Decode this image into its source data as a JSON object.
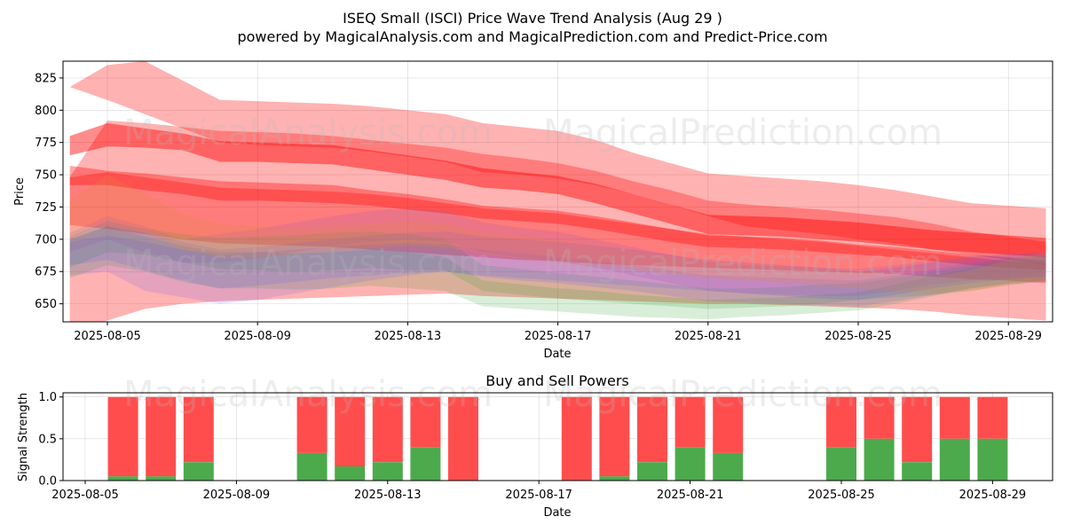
{
  "title": "ISEQ Small (ISCI) Price Wave Trend Analysis (Aug 29 )",
  "subtitle": "powered by MagicalAnalysis.com and MagicalPrediction.com and Predict-Price.com",
  "watermarks": [
    "MagicalAnalysis.com",
    "MagicalPrediction.com"
  ],
  "colors": {
    "red": "#ff0000",
    "green": "#2ca02c",
    "blue": "#4a4aff",
    "purple": "#9b59b6",
    "orange": "#e08a3c",
    "buy": "#4caa4c",
    "sell": "#ff4d4d"
  },
  "chart_data": [
    {
      "type": "area",
      "xlabel": "Date",
      "ylabel": "Price",
      "ylim": [
        636,
        838
      ],
      "grid": true,
      "x_ticks": [
        "2025-08-05",
        "2025-08-09",
        "2025-08-13",
        "2025-08-17",
        "2025-08-21",
        "2025-08-25",
        "2025-08-29"
      ],
      "y_ticks": [
        650,
        675,
        700,
        725,
        750,
        775,
        800,
        825
      ],
      "dates": [
        "2025-08-04",
        "2025-08-05",
        "2025-08-06",
        "2025-08-07",
        "2025-08-08",
        "2025-08-09",
        "2025-08-10",
        "2025-08-11",
        "2025-08-12",
        "2025-08-13",
        "2025-08-14",
        "2025-08-15",
        "2025-08-16",
        "2025-08-17",
        "2025-08-18",
        "2025-08-19",
        "2025-08-20",
        "2025-08-21",
        "2025-08-22",
        "2025-08-23",
        "2025-08-24",
        "2025-08-25",
        "2025-08-26",
        "2025-08-27",
        "2025-08-28",
        "2025-08-29",
        "2025-08-30"
      ],
      "bands": [
        {
          "color": "red",
          "opacity": 0.3,
          "lower": [
            818,
            808,
            797,
            786,
            775,
            773,
            772,
            771,
            768,
            764,
            760,
            752,
            750,
            747,
            742,
            735,
            727,
            718,
            710,
            707,
            704,
            700,
            697,
            692,
            688,
            684,
            680
          ],
          "upper": [
            818,
            835,
            838,
            823,
            808,
            807,
            806,
            805,
            803,
            800,
            797,
            790,
            787,
            784,
            777,
            767,
            759,
            751,
            749,
            747,
            745,
            742,
            738,
            733,
            728,
            726,
            724
          ]
        },
        {
          "color": "red",
          "opacity": 0.3,
          "lower": [
            711,
            708,
            704,
            700,
            697,
            696,
            695,
            694,
            692,
            690,
            688,
            686,
            684,
            683,
            681,
            680,
            679,
            678,
            677,
            676,
            675,
            674,
            673,
            671,
            669,
            668,
            666
          ],
          "upper": [
            748,
            792,
            790,
            787,
            784,
            783,
            782,
            780,
            777,
            774,
            771,
            766,
            763,
            759,
            753,
            745,
            738,
            730,
            727,
            725,
            723,
            720,
            717,
            712,
            706,
            702,
            698
          ]
        },
        {
          "color": "red",
          "opacity": 0.3,
          "lower": [
            625,
            637,
            646,
            650,
            652,
            653,
            654,
            655,
            656,
            657,
            658,
            656,
            655,
            654,
            653,
            652,
            651,
            650,
            650,
            649,
            648,
            647,
            646,
            644,
            641,
            639,
            637
          ],
          "upper": [
            748,
            752,
            748,
            744,
            740,
            739,
            738,
            737,
            735,
            732,
            728,
            724,
            722,
            720,
            716,
            712,
            708,
            704,
            702,
            700,
            698,
            695,
            692,
            689,
            686,
            683,
            681
          ]
        },
        {
          "color": "red",
          "opacity": 0.35,
          "lower": [
            742,
            742,
            738,
            735,
            730,
            730,
            729,
            728,
            726,
            723,
            720,
            716,
            714,
            712,
            708,
            703,
            698,
            694,
            693,
            692,
            690,
            688,
            686,
            683,
            680,
            678,
            676
          ],
          "upper": [
            757,
            753,
            751,
            748,
            745,
            744,
            743,
            742,
            738,
            735,
            731,
            726,
            724,
            722,
            718,
            713,
            708,
            703,
            702,
            701,
            699,
            696,
            694,
            691,
            688,
            686,
            683
          ]
        },
        {
          "color": "red",
          "opacity": 0.45,
          "lower": [
            765,
            772,
            771,
            769,
            760,
            760,
            759,
            758,
            754,
            750,
            746,
            740,
            738,
            735,
            728,
            720,
            712,
            704,
            703,
            702,
            700,
            698,
            695,
            692,
            690,
            688,
            686
          ],
          "upper": [
            780,
            790,
            786,
            782,
            776,
            775,
            774,
            773,
            769,
            765,
            761,
            755,
            752,
            749,
            743,
            735,
            727,
            719,
            718,
            717,
            715,
            713,
            710,
            707,
            705,
            703,
            701
          ]
        },
        {
          "color": "green",
          "opacity": 0.18,
          "lower": [
            678,
            690,
            688,
            682,
            677,
            676,
            675,
            676,
            678,
            676,
            676,
            660,
            657,
            654,
            652,
            650,
            648,
            646,
            647,
            648,
            650,
            653,
            655,
            657,
            660,
            665,
            668
          ],
          "upper": [
            702,
            714,
            708,
            704,
            701,
            702,
            703,
            705,
            706,
            704,
            700,
            680,
            677,
            674,
            671,
            668,
            665,
            662,
            662,
            663,
            665,
            666,
            670,
            675,
            680,
            685,
            688
          ]
        },
        {
          "color": "green",
          "opacity": 0.18,
          "lower": [
            670,
            680,
            675,
            667,
            662,
            662,
            661,
            662,
            664,
            662,
            660,
            648,
            646,
            644,
            642,
            640,
            639,
            638,
            640,
            641,
            643,
            645,
            650,
            656,
            662,
            666,
            668
          ],
          "upper": [
            700,
            710,
            702,
            695,
            690,
            690,
            689,
            690,
            692,
            690,
            686,
            668,
            665,
            662,
            660,
            657,
            655,
            653,
            654,
            655,
            657,
            659,
            665,
            672,
            678,
            683,
            686
          ]
        },
        {
          "color": "blue",
          "opacity": 0.15,
          "lower": [
            672,
            675,
            660,
            655,
            650,
            653,
            658,
            663,
            668,
            672,
            675,
            672,
            670,
            668,
            666,
            664,
            662,
            660,
            658,
            656,
            654,
            653,
            657,
            662,
            666,
            669,
            671
          ],
          "upper": [
            700,
            710,
            705,
            698,
            692,
            694,
            697,
            700,
            703,
            705,
            706,
            702,
            700,
            698,
            695,
            692,
            688,
            684,
            682,
            680,
            678,
            675,
            678,
            682,
            686,
            688,
            690
          ]
        },
        {
          "color": "blue",
          "opacity": 0.15,
          "lower": [
            680,
            684,
            676,
            668,
            662,
            664,
            667,
            670,
            672,
            674,
            675,
            671,
            668,
            666,
            663,
            660,
            656,
            652,
            651,
            650,
            649,
            648,
            652,
            657,
            662,
            665,
            667
          ],
          "upper": [
            698,
            703,
            698,
            692,
            688,
            690,
            692,
            694,
            696,
            697,
            696,
            692,
            689,
            686,
            683,
            680,
            676,
            672,
            671,
            670,
            669,
            668,
            672,
            677,
            682,
            685,
            687
          ]
        },
        {
          "color": "purple",
          "opacity": 0.2,
          "lower": [
            690,
            700,
            690,
            682,
            682,
            685,
            690,
            695,
            698,
            700,
            698,
            690,
            686,
            683,
            678,
            672,
            666,
            660,
            658,
            657,
            656,
            656,
            660,
            665,
            668,
            670,
            672
          ],
          "upper": [
            705,
            718,
            710,
            700,
            704,
            708,
            713,
            718,
            722,
            724,
            722,
            713,
            709,
            706,
            700,
            694,
            688,
            682,
            680,
            679,
            678,
            677,
            680,
            684,
            687,
            689,
            690
          ]
        },
        {
          "color": "orange",
          "opacity": 0.22,
          "lower": [
            700,
            715,
            705,
            692,
            686,
            686,
            688,
            690,
            693,
            695,
            694,
            688,
            685,
            682,
            679,
            676,
            673,
            670,
            668,
            666,
            664,
            662,
            660,
            658,
            660,
            664,
            668
          ],
          "upper": [
            730,
            750,
            735,
            720,
            712,
            710,
            709,
            710,
            712,
            714,
            712,
            705,
            702,
            699,
            695,
            691,
            687,
            683,
            681,
            679,
            677,
            675,
            673,
            671,
            676,
            684,
            690
          ]
        }
      ]
    },
    {
      "type": "bar",
      "title": "Buy and Sell Powers",
      "xlabel": "Date",
      "ylabel": "Signal Strength",
      "ylim": [
        0,
        1.05
      ],
      "grid": true,
      "x_ticks": [
        "2025-08-05",
        "2025-08-09",
        "2025-08-13",
        "2025-08-17",
        "2025-08-21",
        "2025-08-25",
        "2025-08-29"
      ],
      "y_ticks": [
        "0.0",
        "0.5",
        "1.0"
      ],
      "bars": [
        {
          "date": "2025-08-06",
          "buy": 0.05
        },
        {
          "date": "2025-08-07",
          "buy": 0.05
        },
        {
          "date": "2025-08-08",
          "buy": 0.22
        },
        {
          "date": "2025-08-11",
          "buy": 0.33
        },
        {
          "date": "2025-08-12",
          "buy": 0.17
        },
        {
          "date": "2025-08-13",
          "buy": 0.22
        },
        {
          "date": "2025-08-14",
          "buy": 0.4
        },
        {
          "date": "2025-08-15",
          "buy": 0.0
        },
        {
          "date": "2025-08-18",
          "buy": 0.0
        },
        {
          "date": "2025-08-19",
          "buy": 0.05
        },
        {
          "date": "2025-08-20",
          "buy": 0.22
        },
        {
          "date": "2025-08-21",
          "buy": 0.4
        },
        {
          "date": "2025-08-22",
          "buy": 0.33
        },
        {
          "date": "2025-08-25",
          "buy": 0.4
        },
        {
          "date": "2025-08-26",
          "buy": 0.5
        },
        {
          "date": "2025-08-27",
          "buy": 0.22
        },
        {
          "date": "2025-08-28",
          "buy": 0.5
        },
        {
          "date": "2025-08-29",
          "buy": 0.5
        }
      ]
    }
  ]
}
